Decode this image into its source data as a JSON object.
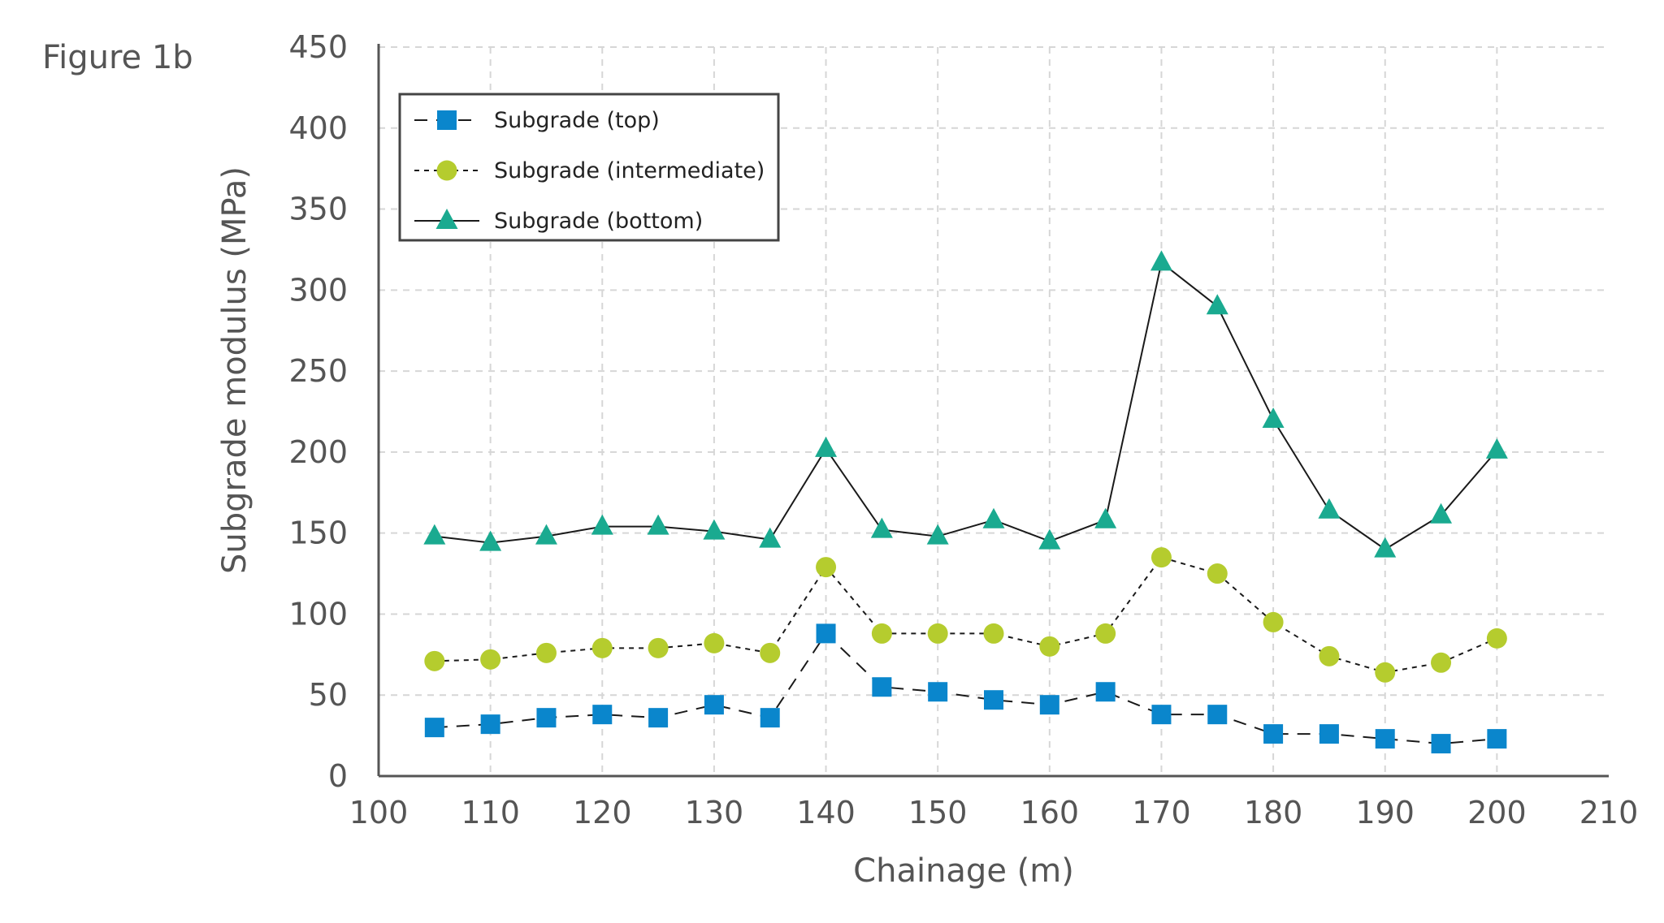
{
  "figure_label": "Figure 1b",
  "chart_data": {
    "type": "line",
    "title": "",
    "xlabel": "Chainage (m)",
    "ylabel": "Subgrade modulus (MPa)",
    "xlim": [
      100,
      210
    ],
    "ylim": [
      0,
      450
    ],
    "xticks": [
      100,
      110,
      120,
      130,
      140,
      150,
      160,
      170,
      180,
      190,
      200,
      210
    ],
    "yticks": [
      0,
      50,
      100,
      150,
      200,
      250,
      300,
      350,
      400,
      450
    ],
    "grid": true,
    "legend_position": "top-left",
    "x": [
      105,
      110,
      115,
      120,
      125,
      130,
      135,
      140,
      145,
      150,
      155,
      160,
      165,
      170,
      175,
      180,
      185,
      190,
      195,
      200
    ],
    "series": [
      {
        "name": "Subgrade (top)",
        "marker": "square",
        "line": "long-dash",
        "color": "#0a86cc",
        "values": [
          30,
          32,
          36,
          38,
          36,
          44,
          36,
          88,
          55,
          52,
          47,
          44,
          52,
          38,
          38,
          26,
          26,
          23,
          20,
          23
        ]
      },
      {
        "name": "Subgrade (intermediate)",
        "marker": "circle",
        "line": "short-dash",
        "color": "#b5cc2e",
        "values": [
          71,
          72,
          76,
          79,
          79,
          82,
          76,
          129,
          88,
          88,
          88,
          80,
          88,
          135,
          125,
          95,
          74,
          64,
          70,
          85
        ]
      },
      {
        "name": "Subgrade (bottom)",
        "marker": "triangle",
        "line": "solid",
        "color": "#1aaa90",
        "values": [
          148,
          144,
          148,
          154,
          154,
          151,
          146,
          202,
          152,
          148,
          158,
          145,
          158,
          317,
          290,
          220,
          164,
          140,
          161,
          201
        ]
      }
    ]
  }
}
